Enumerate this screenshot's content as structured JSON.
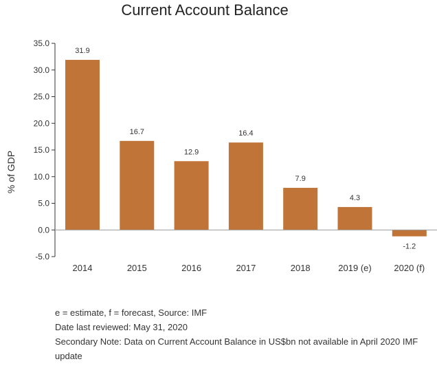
{
  "chart_data": {
    "type": "bar",
    "title": "Current Account Balance",
    "ylabel": "% of GDP",
    "xlabel": "",
    "categories": [
      "2014",
      "2015",
      "2016",
      "2017",
      "2018",
      "2019 (e)",
      "2020 (f)"
    ],
    "values": [
      31.9,
      16.7,
      12.9,
      16.4,
      7.9,
      4.3,
      -1.2
    ],
    "data_labels": [
      "31.9",
      "16.7",
      "12.9",
      "16.4",
      "7.9",
      "4.3",
      "-1.2"
    ],
    "ylim": [
      -5.0,
      35.0
    ],
    "y_ticks": [
      35.0,
      30.0,
      25.0,
      20.0,
      15.0,
      10.0,
      5.0,
      0.0,
      -5.0
    ],
    "y_tick_labels": [
      "35.0",
      "30.0",
      "25.0",
      "20.0",
      "15.0",
      "10.0",
      "5.0",
      "0.0",
      "-5.0"
    ],
    "bar_color": "#C07437",
    "grid": false,
    "legend": "none"
  },
  "notes": {
    "line1": "e = estimate, f = forecast, Source: IMF",
    "line2": "Date last reviewed: May 31, 2020",
    "line3": "Secondary Note: Data on Current Account Balance in US$bn not available in April 2020 IMF update"
  }
}
